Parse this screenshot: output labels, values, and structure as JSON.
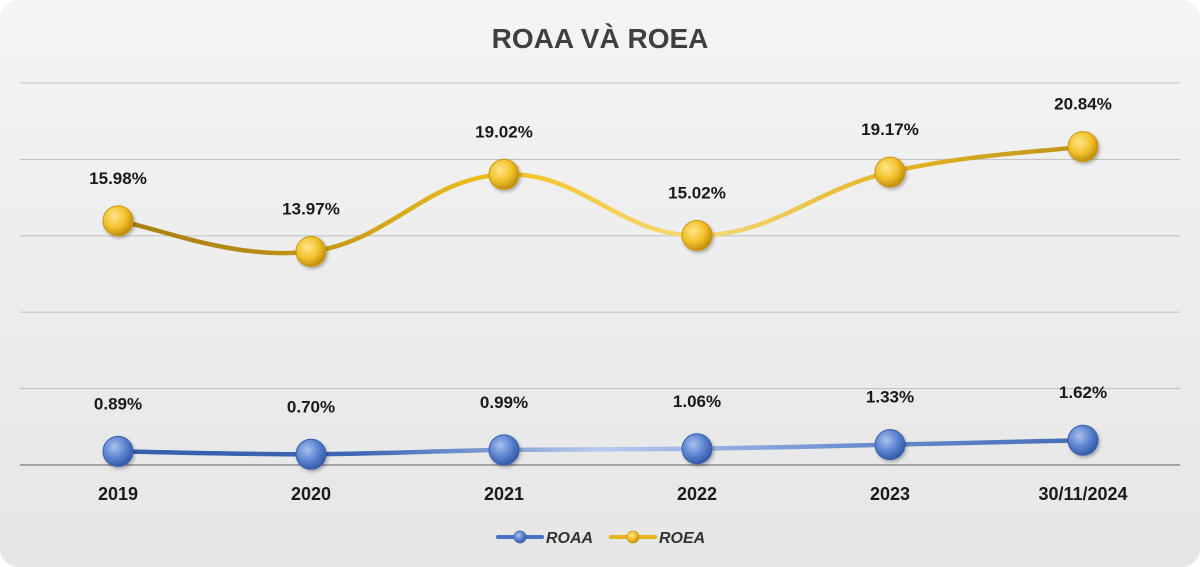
{
  "chart_data": {
    "type": "line",
    "title": "ROAA VÀ ROEA",
    "categories": [
      "2019",
      "2020",
      "2021",
      "2022",
      "2023",
      "30/11/2024"
    ],
    "series": [
      {
        "name": "ROAA",
        "values": [
          0.89,
          0.7,
          0.99,
          1.06,
          1.33,
          1.62
        ],
        "labels": [
          "0.89%",
          "0.70%",
          "0.99%",
          "1.06%",
          "1.33%",
          "1.62%"
        ],
        "color": "#4a72c4"
      },
      {
        "name": "ROEA",
        "values": [
          15.98,
          13.97,
          19.02,
          15.02,
          19.17,
          20.84
        ],
        "labels": [
          "15.98%",
          "13.97%",
          "19.02%",
          "15.02%",
          "19.17%",
          "20.84%"
        ],
        "color": "#e8b51e"
      }
    ],
    "ylim": [
      0,
      25
    ],
    "grid": true,
    "xlabel": "",
    "ylabel": "",
    "legend_position": "bottom"
  }
}
